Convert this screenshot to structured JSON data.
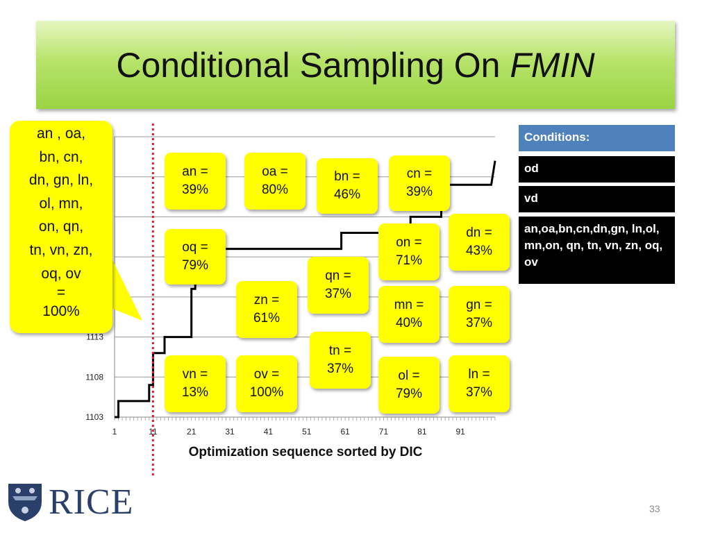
{
  "title": {
    "main": "Conditional Sampling On ",
    "italic": "FMIN"
  },
  "chart_data": {
    "type": "line",
    "xlabel": "Optimization sequence sorted by DIC",
    "x_ticks": [
      1,
      11,
      21,
      31,
      41,
      51,
      61,
      71,
      81,
      91
    ],
    "y_ticks": [
      1103,
      1108,
      1113
    ],
    "ylim": [
      1103,
      1138
    ],
    "xlim": [
      1,
      100
    ],
    "grid": true,
    "threshold_x": 11,
    "series": [
      {
        "values": [
          [
            1,
            1103
          ],
          [
            2,
            1103
          ],
          [
            2,
            1105
          ],
          [
            10,
            1105
          ],
          [
            10,
            1107
          ],
          [
            11,
            1107
          ],
          [
            11,
            1111
          ],
          [
            14,
            1111
          ],
          [
            14,
            1113
          ],
          [
            21,
            1113
          ],
          [
            21,
            1119
          ],
          [
            22,
            1119
          ],
          [
            22,
            1122
          ],
          [
            26,
            1122
          ],
          [
            26,
            1124
          ],
          [
            60,
            1124
          ],
          [
            60,
            1126
          ],
          [
            78,
            1126
          ],
          [
            78,
            1128
          ],
          [
            86,
            1128
          ],
          [
            86,
            1132
          ],
          [
            99,
            1132
          ],
          [
            100,
            1135
          ]
        ]
      }
    ]
  },
  "callout": {
    "lines": [
      "an , oa,",
      "bn, cn,",
      "dn, gn, ln,",
      "ol, mn,",
      "on, qn,",
      "tn, vn, zn,",
      "oq, ov",
      "=",
      "100%"
    ]
  },
  "bubbles": [
    {
      "id": "an",
      "text": "an =\n39%"
    },
    {
      "id": "oa",
      "text": "oa =\n80%"
    },
    {
      "id": "bn",
      "text": "bn =\n46%"
    },
    {
      "id": "cn",
      "text": "cn =\n39%"
    },
    {
      "id": "dn",
      "text": "dn =\n43%"
    },
    {
      "id": "oq",
      "text": "oq =\n79%"
    },
    {
      "id": "on",
      "text": "on =\n71%"
    },
    {
      "id": "qn",
      "text": "qn =\n37%"
    },
    {
      "id": "zn",
      "text": "zn =\n61%"
    },
    {
      "id": "mn",
      "text": "mn =\n40%"
    },
    {
      "id": "gn",
      "text": "gn =\n37%"
    },
    {
      "id": "tn",
      "text": "tn =\n37%"
    },
    {
      "id": "vn",
      "text": "vn =\n13%"
    },
    {
      "id": "ov",
      "text": "ov =\n100%"
    },
    {
      "id": "ol",
      "text": "ol =\n79%"
    },
    {
      "id": "ln",
      "text": "ln =\n37%"
    }
  ],
  "conditions": {
    "header": "Conditions:",
    "items": [
      "od",
      "vd",
      "an,oa,bn,cn,dn,gn, ln,ol, mn,on, qn, tn, vn, zn, oq, ov"
    ]
  },
  "logo": {
    "text": "RICE"
  },
  "page_number": "33",
  "colors": {
    "title_green": "#9ad443",
    "bubble_yellow": "#ffff00",
    "condition_header_blue": "#4f81bd",
    "threshold_red": "#e02020"
  }
}
